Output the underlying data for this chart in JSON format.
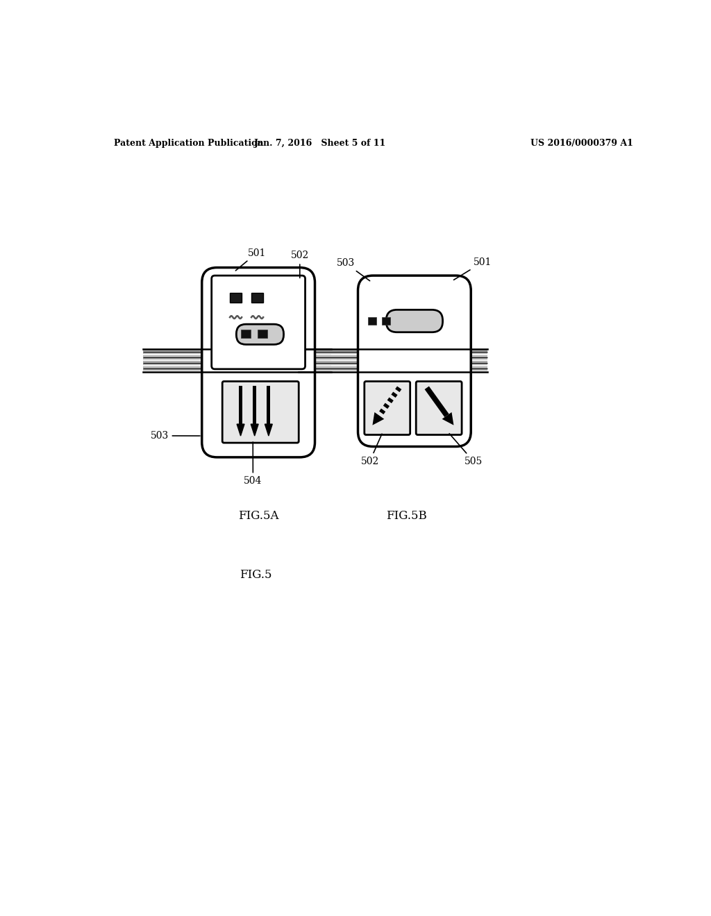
{
  "background_color": "#ffffff",
  "header_left": "Patent Application Publication",
  "header_center": "Jan. 7, 2016   Sheet 5 of 11",
  "header_right": "US 2016/0000379 A1",
  "fig5a_label": "FIG.5A",
  "fig5b_label": "FIG.5B",
  "fig5_label": "FIG.5"
}
